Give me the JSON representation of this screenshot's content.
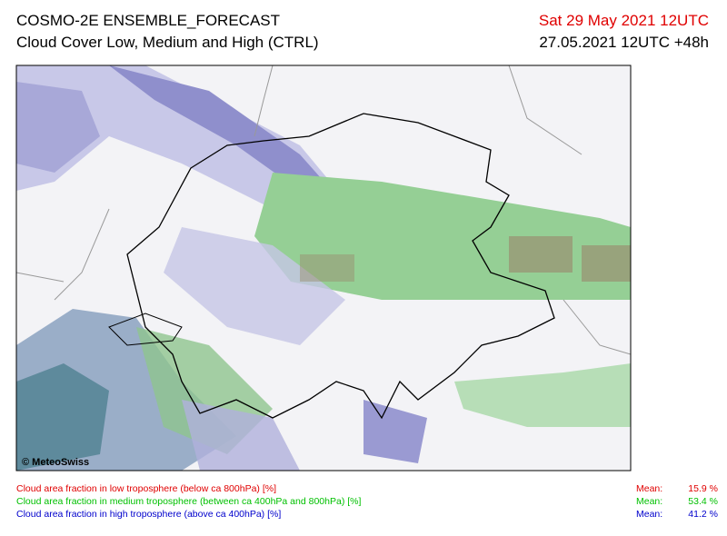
{
  "header": {
    "title": "COSMO-2E ENSEMBLE_FORECAST",
    "subtitle": "Cloud Cover Low, Medium and High (CTRL)",
    "valid_time": "Sat 29 May 2021 12UTC",
    "run_time": "27.05.2021 12UTC +48h"
  },
  "map": {
    "copyright": "© MeteoSwiss"
  },
  "legend": {
    "items": [
      {
        "label": "Cloud area fraction in low troposphere (below ca 800hPa) [%]",
        "mean_label": "Mean:",
        "mean": "15.9 %"
      },
      {
        "label": "Cloud area fraction in medium troposphere (between ca 400hPa and 800hPa) [%]",
        "mean_label": "Mean:",
        "mean": "53.4 %"
      },
      {
        "label": "Cloud area fraction in high troposphere (above ca 400hPa) [%]",
        "mean_label": "Mean:",
        "mean": "41.2 %"
      }
    ]
  }
}
